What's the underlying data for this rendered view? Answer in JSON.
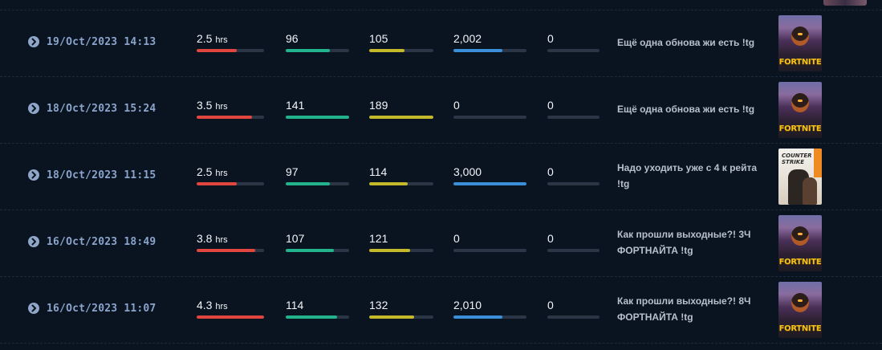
{
  "colors": {
    "bar_track": "#2a3646",
    "bar_1": "#e0463d",
    "bar_2": "#22b38c",
    "bar_3": "#c4b92a",
    "bar_4": "#3b8fd9",
    "bar_5": "#2a3646"
  },
  "rows": [
    {
      "date": "19/Oct/2023 14:13",
      "duration": "2.5",
      "duration_unit": "hrs",
      "duration_fill": 0.6,
      "stat2": "96",
      "stat2_fill": 0.7,
      "stat3": "105",
      "stat3_fill": 0.55,
      "stat4": "2,002",
      "stat4_fill": 0.67,
      "stat5": "0",
      "stat5_fill": 0,
      "title": "Ещё одна обнова жи есть !tg",
      "game_icon": "fortnite",
      "game_logo": "FORTNITE"
    },
    {
      "date": "18/Oct/2023 15:24",
      "duration": "3.5",
      "duration_unit": "hrs",
      "duration_fill": 0.82,
      "stat2": "141",
      "stat2_fill": 1.0,
      "stat3": "189",
      "stat3_fill": 1.0,
      "stat4": "0",
      "stat4_fill": 0,
      "stat5": "0",
      "stat5_fill": 0,
      "title": "Ещё одна обнова жи есть !tg",
      "game_icon": "fortnite",
      "game_logo": "FORTNITE"
    },
    {
      "date": "18/Oct/2023 11:15",
      "duration": "2.5",
      "duration_unit": "hrs",
      "duration_fill": 0.59,
      "stat2": "97",
      "stat2_fill": 0.7,
      "stat3": "114",
      "stat3_fill": 0.6,
      "stat4": "3,000",
      "stat4_fill": 1.0,
      "stat5": "0",
      "stat5_fill": 0,
      "title": "Надо уходить уже с 4 к рейта !tg",
      "game_icon": "counter-strike",
      "game_logo": "COUNTER STRIKE"
    },
    {
      "date": "16/Oct/2023 18:49",
      "duration": "3.8",
      "duration_unit": "hrs",
      "duration_fill": 0.87,
      "stat2": "107",
      "stat2_fill": 0.76,
      "stat3": "121",
      "stat3_fill": 0.64,
      "stat4": "0",
      "stat4_fill": 0,
      "stat5": "0",
      "stat5_fill": 0,
      "title": "Как прошли выходные?! 3Ч ФОРТНАЙТА !tg",
      "game_icon": "fortnite",
      "game_logo": "FORTNITE"
    },
    {
      "date": "16/Oct/2023 11:07",
      "duration": "4.3",
      "duration_unit": "hrs",
      "duration_fill": 1.0,
      "stat2": "114",
      "stat2_fill": 0.81,
      "stat3": "132",
      "stat3_fill": 0.7,
      "stat4": "2,010",
      "stat4_fill": 0.67,
      "stat5": "0",
      "stat5_fill": 0,
      "title": "Как прошли выходные?! 8Ч ФОРТНАЙТА !tg",
      "game_icon": "fortnite",
      "game_logo": "FORTNITE"
    }
  ]
}
